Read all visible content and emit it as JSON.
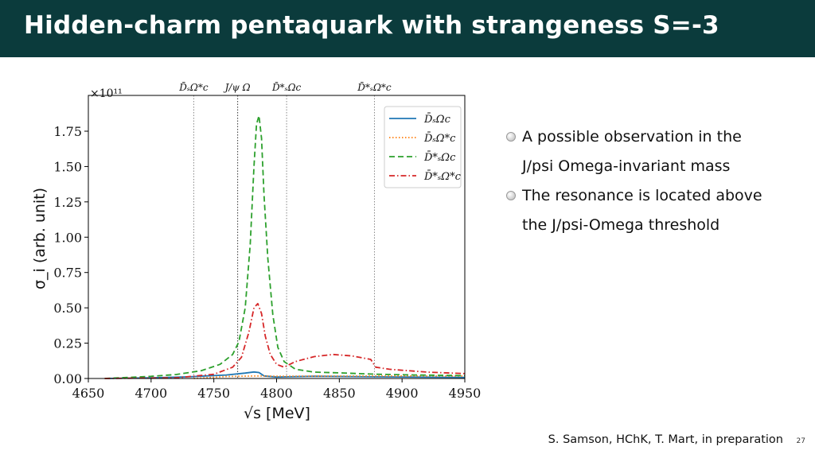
{
  "slide": {
    "title": "Hidden-charm pentaquark with strangeness S=-3",
    "bullets": [
      {
        "lines": [
          "A possible observation in the",
          " J/psi Omega-invariant mass"
        ]
      },
      {
        "lines": [
          "The resonance is located above",
          "the J/psi-Omega threshold"
        ]
      }
    ],
    "citation": "S. Samson, HChK, T. Mart, in preparation",
    "page_number": "27"
  },
  "chart_data": {
    "type": "line",
    "xlabel": "√s [MeV]",
    "ylabel": "σ_i (arb. unit)",
    "y_multiplier": "×10¹¹",
    "xlim": [
      4650,
      4950
    ],
    "ylim": [
      0,
      2.0
    ],
    "xticks": [
      4650,
      4700,
      4750,
      4800,
      4850,
      4900,
      4950
    ],
    "yticks": [
      0.0,
      0.25,
      0.5,
      0.75,
      1.0,
      1.25,
      1.5,
      1.75
    ],
    "thresholds": [
      {
        "label": "D̄ₛΩ*c",
        "x": 4734,
        "style": "dotted"
      },
      {
        "label": "J/ψ Ω",
        "x": 4769,
        "style": "dotted-dark"
      },
      {
        "label": "D̄*ₛΩc",
        "x": 4808,
        "style": "dotted"
      },
      {
        "label": "D̄*ₛΩ*c",
        "x": 4878,
        "style": "dotted"
      }
    ],
    "legend_position": "top-right",
    "series": [
      {
        "name": "D̄ₛΩc",
        "color": "#1f77b4",
        "dash": "solid",
        "x": [
          4663,
          4700,
          4730,
          4760,
          4775,
          4782,
          4786,
          4790,
          4800,
          4808,
          4830,
          4880,
          4950
        ],
        "y": [
          0.0,
          0.005,
          0.012,
          0.025,
          0.038,
          0.046,
          0.042,
          0.018,
          0.01,
          0.012,
          0.016,
          0.012,
          0.008
        ]
      },
      {
        "name": "D̄ₛΩ*c",
        "color": "#ff7f0e",
        "dash": "dotted",
        "x": [
          4734,
          4760,
          4784,
          4800,
          4850,
          4900,
          4950
        ],
        "y": [
          0.0,
          0.014,
          0.018,
          0.016,
          0.017,
          0.018,
          0.018
        ]
      },
      {
        "name": "D̄*ₛΩc",
        "color": "#2ca02c",
        "dash": "dashed",
        "x": [
          4663,
          4700,
          4720,
          4740,
          4755,
          4765,
          4770,
          4775,
          4779,
          4782,
          4784,
          4786,
          4788,
          4790,
          4793,
          4797,
          4801,
          4806,
          4815,
          4830,
          4850,
          4880,
          4910,
          4950
        ],
        "y": [
          0.0,
          0.015,
          0.028,
          0.055,
          0.1,
          0.17,
          0.26,
          0.5,
          0.95,
          1.5,
          1.8,
          1.86,
          1.7,
          1.3,
          0.85,
          0.45,
          0.22,
          0.12,
          0.065,
          0.045,
          0.04,
          0.03,
          0.025,
          0.02
        ]
      },
      {
        "name": "D̄*ₛΩ*c",
        "color": "#d62728",
        "dash": "dashdot",
        "x": [
          4663,
          4720,
          4750,
          4765,
          4772,
          4778,
          4782,
          4785,
          4788,
          4791,
          4795,
          4800,
          4806,
          4815,
          4830,
          4845,
          4860,
          4875,
          4879,
          4890,
          4920,
          4950
        ],
        "y": [
          0.0,
          0.005,
          0.03,
          0.08,
          0.15,
          0.33,
          0.5,
          0.53,
          0.46,
          0.3,
          0.17,
          0.1,
          0.08,
          0.12,
          0.155,
          0.17,
          0.16,
          0.135,
          0.08,
          0.065,
          0.045,
          0.035
        ]
      }
    ]
  }
}
